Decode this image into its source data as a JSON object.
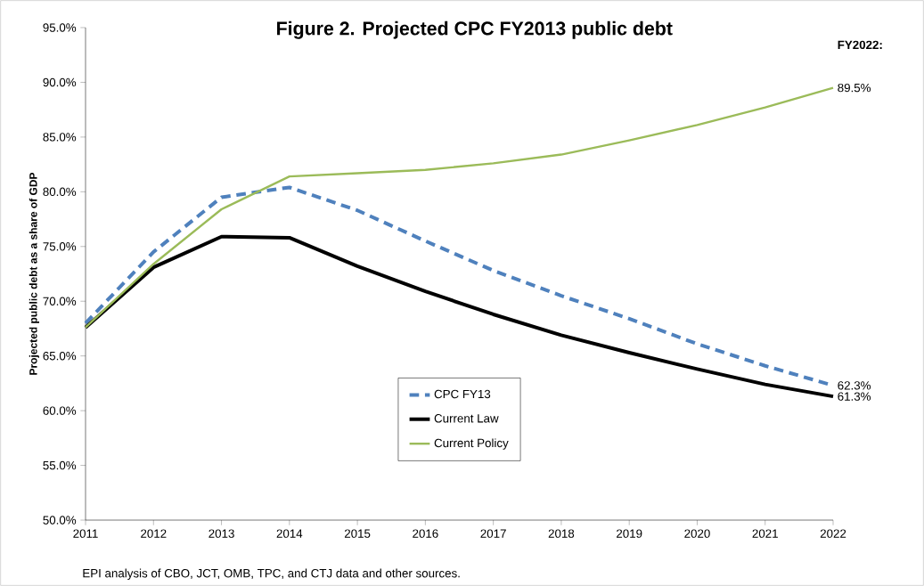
{
  "chart_data": {
    "type": "line",
    "title": "Figure 2. Projected CPC FY2013 public debt",
    "ylabel": "Projected public debt as a share of GDP",
    "x": [
      2011,
      2012,
      2013,
      2014,
      2015,
      2016,
      2017,
      2018,
      2019,
      2020,
      2021,
      2022
    ],
    "series": [
      {
        "name": "CPC FY13",
        "color": "#4f81bd",
        "line_style": "dashed",
        "value_labels": [
          null,
          null,
          null,
          null,
          null,
          null,
          null,
          null,
          null,
          null,
          null,
          "62.3%"
        ],
        "values": [
          68.0,
          74.5,
          79.5,
          80.4,
          78.3,
          75.5,
          72.8,
          70.5,
          68.4,
          66.1,
          64.1,
          62.3
        ]
      },
      {
        "name": "Current Law",
        "color": "#000000",
        "line_style": "solid",
        "value_labels": [
          null,
          null,
          null,
          null,
          null,
          null,
          null,
          null,
          null,
          null,
          null,
          "61.3%"
        ],
        "values": [
          67.6,
          73.1,
          75.9,
          75.8,
          73.2,
          70.9,
          68.8,
          66.9,
          65.3,
          63.8,
          62.4,
          61.3
        ]
      },
      {
        "name": "Current Policy",
        "color": "#9bbb59",
        "line_style": "solid",
        "value_labels": [
          null,
          null,
          null,
          null,
          null,
          null,
          null,
          null,
          null,
          null,
          null,
          "89.5%"
        ],
        "values": [
          67.6,
          73.4,
          78.4,
          81.4,
          81.7,
          82.0,
          82.6,
          83.4,
          84.7,
          86.1,
          87.7,
          89.5
        ]
      }
    ],
    "xlim": [
      2011,
      2022
    ],
    "xticks": [
      2011,
      2012,
      2013,
      2014,
      2015,
      2016,
      2017,
      2018,
      2019,
      2020,
      2021,
      2022
    ],
    "ylim": [
      50,
      95
    ],
    "yticks": [
      {
        "value": 50,
        "label": "50.0%"
      },
      {
        "value": 55,
        "label": "55.0%"
      },
      {
        "value": 60,
        "label": "60.0%"
      },
      {
        "value": 65,
        "label": "65.0%"
      },
      {
        "value": 70,
        "label": "70.0%"
      },
      {
        "value": 75,
        "label": "75.0%"
      },
      {
        "value": 80,
        "label": "80.0%"
      },
      {
        "value": 85,
        "label": "85.0%"
      },
      {
        "value": 90,
        "label": "90.0%"
      },
      {
        "value": 95,
        "label": "95.0%"
      }
    ],
    "annotations": [
      "FY2022:",
      "EPI analysis of CBO, JCT, OMB, TPC, and CTJ data and other sources."
    ],
    "grid": false,
    "legend": "bottom",
    "marker": "none"
  }
}
